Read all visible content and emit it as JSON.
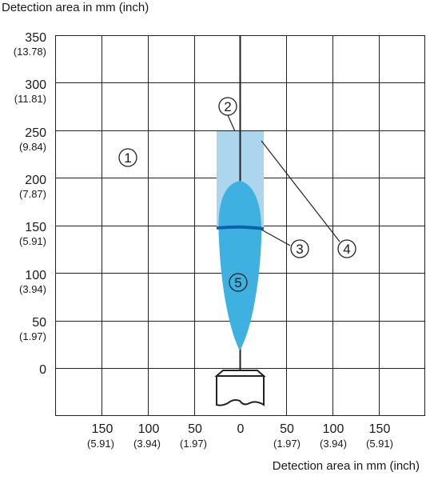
{
  "axis_labels": {
    "y_title": "Detection area in mm (inch)",
    "x_title": "Detection area in mm (inch)"
  },
  "y_ticks": [
    {
      "main": "350",
      "sub": "(13.78)"
    },
    {
      "main": "300",
      "sub": "(11.81)"
    },
    {
      "main": "250",
      "sub": "(9.84)"
    },
    {
      "main": "200",
      "sub": "(7.87)"
    },
    {
      "main": "150",
      "sub": "(5.91)"
    },
    {
      "main": "100",
      "sub": "(3.94)"
    },
    {
      "main": "50",
      "sub": "(1.97)"
    },
    {
      "main": "0",
      "sub": ""
    }
  ],
  "x_ticks": [
    {
      "main": "150",
      "sub": "(5.91)"
    },
    {
      "main": "100",
      "sub": "(3.94)"
    },
    {
      "main": "50",
      "sub": "(1.97)"
    },
    {
      "main": "0",
      "sub": ""
    },
    {
      "main": "50",
      "sub": "(1.97)"
    },
    {
      "main": "100",
      "sub": "(3.94)"
    },
    {
      "main": "150",
      "sub": "(5.91)"
    }
  ],
  "callouts": [
    "1",
    "2",
    "3",
    "4",
    "5"
  ],
  "colors": {
    "light_zone": "#acd6ee",
    "dark_zone": "#3fb1e1",
    "focus_line": "#0b63ae",
    "grid": "#222222"
  }
}
